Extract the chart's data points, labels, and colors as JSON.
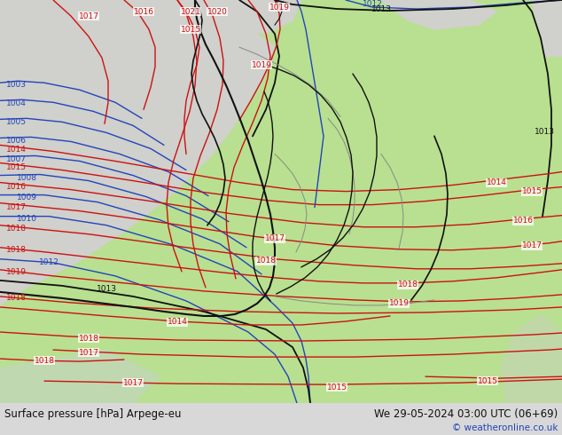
{
  "title_left": "Surface pressure [hPa] Arpege-eu",
  "title_right": "We 29-05-2024 03:00 UTC (06+69)",
  "copyright": "© weatheronline.co.uk",
  "land_green": "#b8e090",
  "sea_grey": "#d0d0cc",
  "sea_blue_tint": "#c8d8e8",
  "blue_color": "#2244bb",
  "red_color": "#cc1111",
  "black_color": "#111111",
  "grey_border": "#888888",
  "footer_bg": "#d8d8d8",
  "footer_text": "#111111",
  "copyright_color": "#2244bb",
  "fig_width": 6.34,
  "fig_height": 4.9,
  "dpi": 100
}
